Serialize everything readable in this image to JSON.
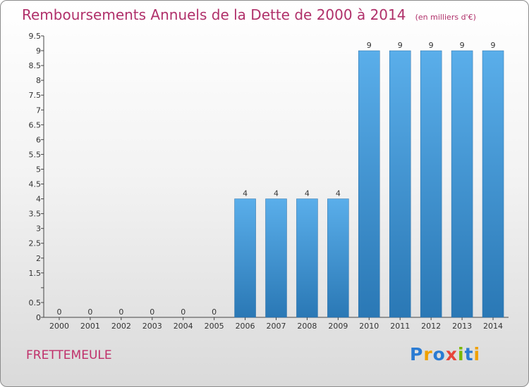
{
  "title": "Remboursements Annuels de la Dette de 2000 à 2014",
  "subtitle": "(en milliers d'€)",
  "commune": "FRETTEMEULE",
  "logo": {
    "letters": [
      "P",
      "r",
      "o",
      "x",
      "i",
      "t",
      "i"
    ],
    "colors": [
      "#2a7bd3",
      "#f0a000",
      "#2a7bd3",
      "#e8443a",
      "#7ab800",
      "#2a7bd3",
      "#f0a000"
    ]
  },
  "colors": {
    "bar_light": "#5aaeea",
    "bar_dark": "#2a78b5",
    "title": "#b0306a"
  },
  "chart_data": {
    "type": "bar",
    "categories": [
      "2000",
      "2001",
      "2002",
      "2003",
      "2004",
      "2005",
      "2006",
      "2007",
      "2008",
      "2009",
      "2010",
      "2011",
      "2012",
      "2013",
      "2014"
    ],
    "values": [
      0,
      0,
      0,
      0,
      0,
      0,
      4,
      4,
      4,
      4,
      9,
      9,
      9,
      9,
      9
    ],
    "value_labels": [
      "0",
      "0",
      "0",
      "0",
      "0",
      "0",
      "4",
      "4",
      "4",
      "4",
      "9",
      "9",
      "9",
      "9",
      "9"
    ],
    "ylim": [
      0,
      9.5
    ],
    "yticks": [
      0,
      0.5,
      1,
      1.5,
      2,
      2.5,
      3,
      3.5,
      4,
      4.5,
      5,
      5.5,
      6,
      6.5,
      7,
      7.5,
      8,
      8.5,
      9,
      9.5
    ],
    "ytick_labels": [
      "0",
      "0.5",
      "",
      "1.5",
      "2",
      "2.5",
      "3",
      "3.5",
      "4",
      "4.5",
      "5",
      "5.5",
      "6",
      "6.5",
      "7",
      "7.5",
      "8",
      "8.5",
      "9",
      "9.5"
    ],
    "grid": false
  }
}
